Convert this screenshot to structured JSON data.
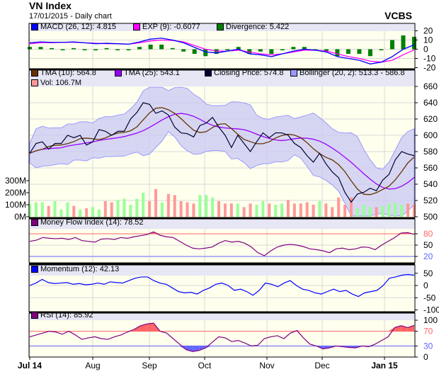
{
  "header": {
    "title": "VN Index",
    "subtitle": "17/01/2015 - Daily chart",
    "brand": "VCBS"
  },
  "legends": {
    "macd": [
      {
        "label": "MACD (26, 12): 4.815",
        "color": "#0000ff"
      },
      {
        "label": "EXP (9): -0.6077",
        "color": "#ff00ff"
      },
      {
        "label": "Divergence: 5.422",
        "color": "#008000"
      }
    ],
    "price": [
      {
        "label": "TMA (10): 564.8",
        "color": "#663300"
      },
      {
        "label": "TMA (25): 543.1",
        "color": "#9900ff"
      },
      {
        "label": "Closing Price: 574.8",
        "color": "#000033"
      },
      {
        "label": "Bollinger (20, 2): 513.3 - 586.8",
        "color": "#9999ff"
      }
    ],
    "vol": [
      {
        "label": "Vol: 106.7M",
        "color": "#ff9999"
      }
    ],
    "mfi": [
      {
        "label": "Money Flow Index (14): 78.52",
        "color": "#800080"
      }
    ],
    "mom": [
      {
        "label": "Momentum (12): 42.13",
        "color": "#0000ff"
      }
    ],
    "rsi": [
      {
        "label": "RSI (14): 85.92",
        "color": "#800080"
      }
    ]
  },
  "chart_data": {
    "type": "line",
    "x_ticks": [
      "Jul 14",
      "Aug",
      "Sep",
      "Oct",
      "Nov",
      "Dec",
      "Jan 15"
    ],
    "axes": {
      "macd": {
        "ticks": [
          "20",
          "10",
          "0",
          "-10",
          "-20"
        ]
      },
      "price": {
        "ticks": [
          "660",
          "640",
          "620",
          "600",
          "580",
          "560",
          "540",
          "520",
          "500"
        ],
        "ylim": [
          500,
          660
        ]
      },
      "vol": {
        "ticks": [
          "300M",
          "200M",
          "100M",
          "0M"
        ],
        "ylim": [
          0,
          300
        ]
      },
      "mfi": {
        "ticks": [
          "80",
          "50",
          "20"
        ],
        "ylim": [
          0,
          100
        ]
      },
      "mom": {
        "ticks": [
          "50",
          "0",
          "-50",
          "-100"
        ]
      },
      "rsi": {
        "ticks": [
          "100",
          "70",
          "30",
          "0"
        ],
        "ylim": [
          0,
          100
        ]
      }
    },
    "close": [
      578,
      590,
      592,
      583,
      590,
      590,
      600,
      597,
      600,
      588,
      592,
      607,
      605,
      600,
      605,
      605,
      620,
      628,
      640,
      638,
      627,
      630,
      625,
      610,
      603,
      602,
      598,
      612,
      615,
      622,
      610,
      600,
      585,
      600,
      590,
      580,
      592,
      603,
      597,
      603,
      603,
      600,
      590,
      585,
      575,
      567,
      578,
      565,
      555,
      548,
      530,
      518,
      528,
      530,
      535,
      532,
      545,
      552,
      570,
      580,
      577,
      575
    ],
    "volume_m": [
      110,
      120,
      120,
      90,
      130,
      60,
      120,
      90,
      60,
      70,
      80,
      60,
      130,
      120,
      140,
      150,
      100,
      150,
      200,
      130,
      230,
      120,
      190,
      180,
      130,
      120,
      110,
      180,
      180,
      160,
      130,
      110,
      110,
      110,
      80,
      110,
      100,
      130,
      110,
      100,
      110,
      140,
      110,
      110,
      120,
      100,
      130,
      110,
      80,
      160,
      100,
      160,
      70,
      100,
      80,
      80,
      90,
      110,
      120,
      100,
      110,
      106.7
    ],
    "macd": [
      7,
      8,
      7.5,
      7.5,
      8,
      7,
      6,
      6.5,
      6,
      5.5,
      8,
      11,
      12,
      10,
      7,
      2,
      -3,
      -4,
      -2,
      0,
      -5,
      -6,
      -8,
      -5,
      -2,
      0,
      -1,
      -3,
      -8,
      -10,
      -12,
      -16,
      -14,
      -8,
      0,
      4.8
    ],
    "exp": [
      6,
      7,
      7,
      7.5,
      7.5,
      7,
      6.5,
      6,
      6,
      5.5,
      7,
      9,
      10,
      9.5,
      8,
      4,
      0,
      -2,
      -2,
      -1,
      -3,
      -5,
      -6,
      -5,
      -3,
      -1,
      -1,
      -2,
      -5,
      -8,
      -10,
      -13,
      -14,
      -12,
      -6,
      -0.6
    ],
    "mfi": [
      60,
      63,
      70,
      68,
      67,
      68,
      65,
      70,
      62,
      60,
      58,
      66,
      67,
      65,
      70,
      68,
      72,
      75,
      78,
      85,
      76,
      72,
      70,
      60,
      50,
      42,
      40,
      42,
      45,
      55,
      62,
      58,
      60,
      55,
      45,
      30,
      22,
      35,
      45,
      50,
      52,
      50,
      46,
      40,
      38,
      35,
      30,
      40,
      42,
      38,
      40,
      45,
      44,
      38,
      50,
      60,
      70,
      82,
      83,
      78.5
    ],
    "momentum": [
      0,
      10,
      25,
      12,
      8,
      10,
      12,
      5,
      8,
      3,
      5,
      10,
      5,
      15,
      12,
      10,
      20,
      30,
      35,
      35,
      20,
      10,
      5,
      -10,
      -25,
      -30,
      -28,
      -35,
      -20,
      -10,
      5,
      10,
      0,
      -20,
      -15,
      -25,
      -40,
      -20,
      10,
      5,
      -5,
      10,
      20,
      0,
      -15,
      -20,
      -30,
      -35,
      -25,
      -15,
      -25,
      -20,
      -35,
      -45,
      -30,
      -25,
      -20,
      0,
      30,
      35,
      42,
      45,
      42.1
    ],
    "rsi": [
      55,
      60,
      65,
      70,
      68,
      62,
      70,
      60,
      48,
      52,
      55,
      50,
      48,
      55,
      60,
      68,
      75,
      85,
      90,
      92,
      70,
      65,
      50,
      35,
      20,
      15,
      18,
      25,
      40,
      55,
      52,
      42,
      45,
      38,
      30,
      32,
      50,
      55,
      58,
      50,
      65,
      72,
      52,
      35,
      30,
      22,
      25,
      30,
      28,
      26,
      25,
      30,
      28,
      35,
      45,
      55,
      80,
      85,
      80,
      86
    ]
  }
}
